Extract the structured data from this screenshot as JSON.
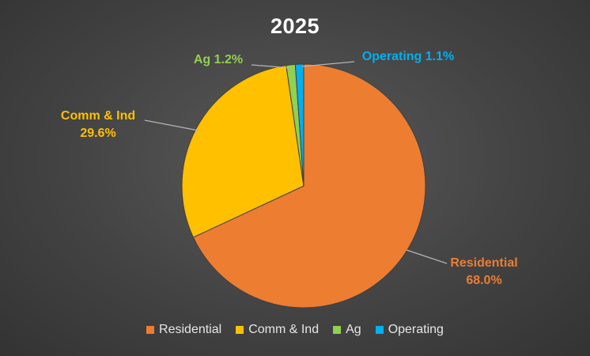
{
  "chart_data": {
    "type": "pie",
    "title": "2025",
    "legend_position": "bottom",
    "categories": [
      "Residential",
      "Comm & Ind",
      "Ag",
      "Operating"
    ],
    "values": [
      68.0,
      29.6,
      1.2,
      1.1
    ],
    "data_labels": [
      "68.0%",
      "29.6%",
      "1.2%",
      "1.1%"
    ],
    "colors": [
      "#ED7D31",
      "#FFC000",
      "#92D050",
      "#00B0F0"
    ],
    "start_angle_deg": 0,
    "direction": "clockwise"
  }
}
